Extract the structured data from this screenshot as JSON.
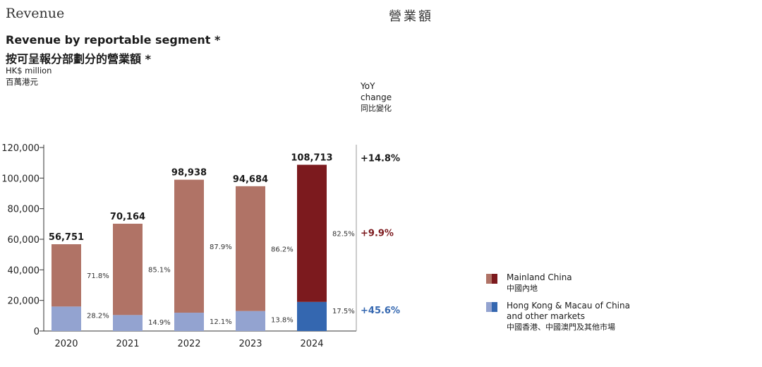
{
  "header": {
    "section_en": "Revenue",
    "section_zh": "營業額"
  },
  "titles": {
    "title_en": "Revenue by reportable segment *",
    "title_zh": "按可呈報分部劃分的營業額 *",
    "unit_en": "HK$ million",
    "unit_zh": "百萬港元"
  },
  "yoy_header": {
    "line1": "YoY",
    "line2": "change",
    "zh": "同比變化"
  },
  "legend": [
    {
      "en": "Mainland China",
      "zh": "中國內地",
      "colors": [
        "#b07366",
        "#7c1a1e"
      ]
    },
    {
      "en": "Hong Kong & Macau of China and other markets",
      "zh": "中國香港、中國澳門及其他市場",
      "colors": [
        "#93a3d0",
        "#3467b0"
      ]
    }
  ],
  "colors": {
    "mainland": "#b07366",
    "mainland_highlight": "#7c1a1e",
    "hk": "#93a3d0",
    "hk_highlight": "#3467b0"
  },
  "chart_data": {
    "type": "bar",
    "stacked": true,
    "categories": [
      "2020",
      "2021",
      "2022",
      "2023",
      "2024"
    ],
    "totals": [
      56751,
      70164,
      98938,
      94684,
      108713
    ],
    "series": [
      {
        "name": "Mainland China",
        "shares": [
          71.8,
          85.1,
          87.9,
          86.2,
          82.5
        ],
        "share_labels": [
          "71.8%",
          "85.1%",
          "87.9%",
          "86.2%",
          "82.5%"
        ]
      },
      {
        "name": "Hong Kong & Macau of China and other markets",
        "shares": [
          28.2,
          14.9,
          12.1,
          13.8,
          17.5
        ],
        "share_labels": [
          "28.2%",
          "14.9%",
          "12.1%",
          "13.8%",
          "17.5%"
        ]
      }
    ],
    "total_labels": [
      "56,751",
      "70,164",
      "98,938",
      "94,684",
      "108,713"
    ],
    "yticks": [
      0,
      20000,
      40000,
      60000,
      80000,
      100000,
      120000
    ],
    "ytick_labels": [
      "0",
      "20,000",
      "40,000",
      "60,000",
      "80,000",
      "100,000",
      "120,000"
    ],
    "ylim": [
      0,
      120000
    ],
    "yoy_change": {
      "total": "+14.8%",
      "mainland": "+9.9%",
      "hk_other": "+45.6%"
    },
    "highlight_category": "2024",
    "legend_position": "right"
  }
}
